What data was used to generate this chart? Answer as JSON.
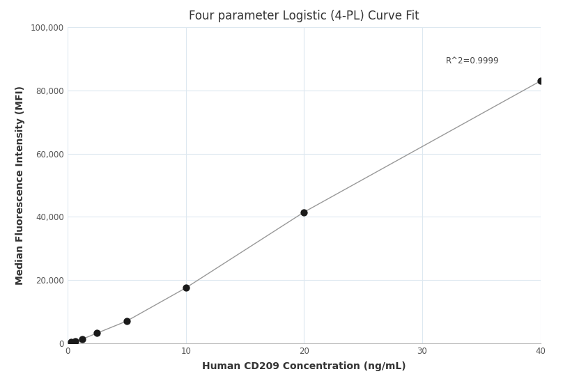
{
  "title": "Four parameter Logistic (4-PL) Curve Fit",
  "xlabel": "Human CD209 Concentration (ng/mL)",
  "ylabel": "Median Fluorescence Intensity (MFI)",
  "x_data": [
    0.313,
    0.625,
    1.25,
    2.5,
    5.0,
    10.0,
    20.0,
    40.0
  ],
  "y_data": [
    300,
    700,
    1300,
    3200,
    7000,
    17500,
    41500,
    83000
  ],
  "xlim": [
    0,
    40
  ],
  "ylim": [
    0,
    100000
  ],
  "xticks": [
    0,
    10,
    20,
    30,
    40
  ],
  "yticks": [
    0,
    20000,
    40000,
    60000,
    80000,
    100000
  ],
  "ytick_labels": [
    "0",
    "20,000",
    "40,000",
    "60,000",
    "80,000",
    "100,000"
  ],
  "r_squared_text": "R^2=0.9999",
  "r_squared_x": 36.5,
  "r_squared_y": 88000,
  "line_color": "#999999",
  "dot_color": "#1a1a1a",
  "dot_size": 55,
  "background_color": "#ffffff",
  "grid_color": "#dde8f0",
  "title_fontsize": 12,
  "label_fontsize": 10,
  "tick_fontsize": 8.5,
  "annot_fontsize": 8.5
}
